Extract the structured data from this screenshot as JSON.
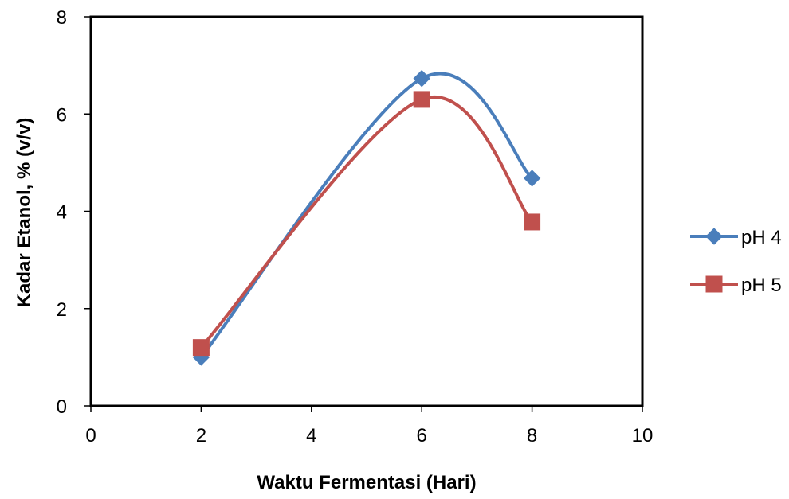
{
  "chart_data": {
    "type": "scatter",
    "title": "",
    "xlabel": "Waktu Fermentasi (Hari)",
    "ylabel": "Kadar Etanol, % (v/v)",
    "xlim": [
      0,
      10
    ],
    "ylim": [
      0,
      8
    ],
    "xticks": [
      "0",
      "2",
      "4",
      "6",
      "8",
      "10"
    ],
    "yticks": [
      "0",
      "2",
      "4",
      "6",
      "8"
    ],
    "grid": false,
    "smooth_lines": true,
    "legend_position": "right",
    "series": [
      {
        "name": "pH 4",
        "color": "#4a7ebb",
        "marker": "diamond",
        "x": [
          2,
          6,
          8
        ],
        "y": [
          1.0,
          6.73,
          4.68
        ]
      },
      {
        "name": "pH 5",
        "color": "#c0504d",
        "marker": "square",
        "x": [
          2,
          6,
          8
        ],
        "y": [
          1.2,
          6.3,
          3.78
        ]
      }
    ]
  }
}
